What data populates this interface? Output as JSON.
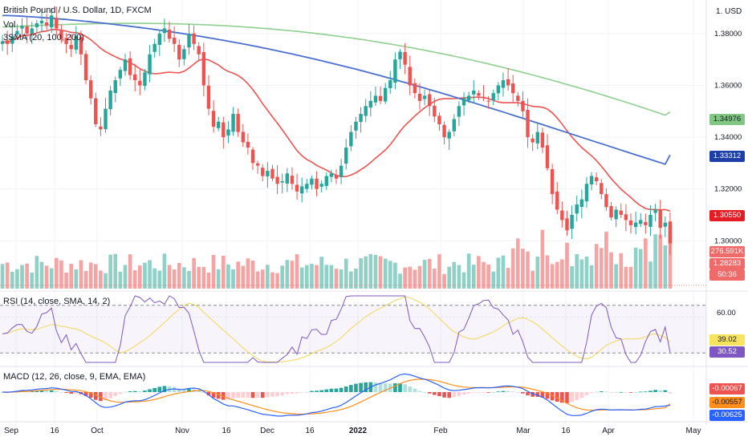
{
  "header": {
    "title": "British Pound / U.S. Dollar, 1D, FXCM",
    "vol_label": "Vol",
    "sma_label": "3SMA (20, 100, 200)",
    "rsi_label": "RSI (14, close, SMA, 14, 2)",
    "macd_label": "MACD (12, 26, close, 9, EMA, EMA)",
    "currency": "1. USD"
  },
  "price_axis": {
    "ticks": [
      "1.38000",
      "1.36000",
      "1.34000",
      "1.32000",
      "1.30000"
    ],
    "tick_values": [
      1.38,
      1.36,
      1.34,
      1.32,
      1.3
    ]
  },
  "rsi_axis": {
    "ticks": [
      "60.00"
    ]
  },
  "tags": {
    "sma200": {
      "text": "1.34976",
      "value": 1.34976,
      "bg": "#81c784",
      "fg": "#131722"
    },
    "sma100": {
      "text": "1.33312",
      "value": 1.33312,
      "bg": "#1e3fa8",
      "fg": "#ffffff"
    },
    "last_price": {
      "text": "1.30550",
      "value": 1.3055,
      "bg": "#e51c23",
      "fg": "#ffffff"
    },
    "volume": {
      "text": "276.591K",
      "bg": "#f06a6a",
      "fg": "#ffffff"
    },
    "price2": {
      "text": "1.28283",
      "bg": "#f06a6a",
      "fg": "#ffffff"
    },
    "countdown": {
      "text": "50:36",
      "bg": "#f06a6a",
      "fg": "#ffffff"
    },
    "rsi_sma": {
      "text": "39.02",
      "value": 39.02,
      "bg": "#f7e35c",
      "fg": "#131722"
    },
    "rsi": {
      "text": "30.52",
      "value": 30.52,
      "bg": "#7e57c2",
      "fg": "#ffffff"
    },
    "macd_hist": {
      "text": "-0.00067",
      "value": -0.00067,
      "bg": "#ef5350",
      "fg": "#ffffff"
    },
    "macd_signal": {
      "text": "-0.00557",
      "value": -0.00557,
      "bg": "#ff8f1c",
      "fg": "#131722"
    },
    "macd_line": {
      "text": "-0.00625",
      "value": -0.00625,
      "bg": "#2962ff",
      "fg": "#ffffff"
    }
  },
  "x_axis": {
    "labels": [
      "Sep",
      "16",
      "Oct",
      "Nov",
      "16",
      "Dec",
      "16",
      "2022",
      "Feb",
      "Mar",
      "16",
      "Apr",
      "May"
    ],
    "bold_label": "2022"
  },
  "colors": {
    "up": "#26a69a",
    "down": "#ef5350",
    "vol_up": "#8fd0c7",
    "vol_down": "#f5a3a3",
    "sma20": "#ef5350",
    "sma100": "#4a6fd1",
    "sma200": "#8fcf8f",
    "rsi": "#7e57c2",
    "rsi_sma": "#f1d75a",
    "macd": "#2962ff",
    "signal": "#ff8f1c"
  },
  "chart_data": {
    "type": "candlestick",
    "symbol": "British Pound / U.S. Dollar, 1D, FXCM",
    "price_range": [
      1.2815,
      1.3905
    ],
    "anchors": {
      "dates": [
        "Sep 1",
        "Sep 16",
        "Oct 1",
        "Nov 1",
        "Nov 16",
        "Dec 1",
        "Dec 16",
        "Jan 1 2022",
        "Feb 1",
        "Mar 1",
        "Mar 16",
        "Apr 1",
        "Apr 26"
      ],
      "close": [
        1.379,
        1.381,
        1.355,
        1.37,
        1.342,
        1.33,
        1.325,
        1.355,
        1.345,
        1.342,
        1.32,
        1.313,
        1.283
      ]
    },
    "close_path": [
      1.377,
      1.376,
      1.379,
      1.381,
      1.383,
      1.38,
      1.382,
      1.384,
      1.385,
      1.383,
      1.387,
      1.382,
      1.378,
      1.376,
      1.374,
      1.379,
      1.372,
      1.362,
      1.355,
      1.345,
      1.343,
      1.351,
      1.358,
      1.362,
      1.366,
      1.37,
      1.364,
      1.362,
      1.36,
      1.365,
      1.372,
      1.376,
      1.38,
      1.382,
      1.378,
      1.376,
      1.37,
      1.374,
      1.38,
      1.376,
      1.372,
      1.36,
      1.351,
      1.344,
      1.346,
      1.34,
      1.343,
      1.349,
      1.342,
      1.338,
      1.336,
      1.33,
      1.329,
      1.325,
      1.327,
      1.324,
      1.322,
      1.323,
      1.326,
      1.322,
      1.319,
      1.321,
      1.322,
      1.324,
      1.32,
      1.322,
      1.325,
      1.326,
      1.324,
      1.329,
      1.336,
      1.342,
      1.346,
      1.349,
      1.352,
      1.354,
      1.356,
      1.354,
      1.359,
      1.362,
      1.37,
      1.373,
      1.368,
      1.36,
      1.357,
      1.354,
      1.356,
      1.352,
      1.348,
      1.345,
      1.34,
      1.342,
      1.347,
      1.352,
      1.355,
      1.356,
      1.358,
      1.356,
      1.355,
      1.354,
      1.357,
      1.36,
      1.362,
      1.36,
      1.357,
      1.354,
      1.35,
      1.34,
      1.338,
      1.342,
      1.336,
      1.328,
      1.318,
      1.312,
      1.308,
      1.304,
      1.31,
      1.314,
      1.316,
      1.322,
      1.325,
      1.323,
      1.318,
      1.313,
      1.309,
      1.312,
      1.31,
      1.308,
      1.306,
      1.307,
      1.308,
      1.306,
      1.31,
      1.312,
      1.305,
      1.307,
      1.299
    ],
    "sma20_last": 1.3055,
    "sma100_last": 1.33312,
    "sma200_last": 1.34976,
    "last_volume": "276.591K",
    "rsi": {
      "last": 30.52,
      "sma_last": 39.02,
      "level_60": 60
    },
    "macd": {
      "macd": -0.00625,
      "signal": -0.00557,
      "histogram": -0.00067
    }
  }
}
